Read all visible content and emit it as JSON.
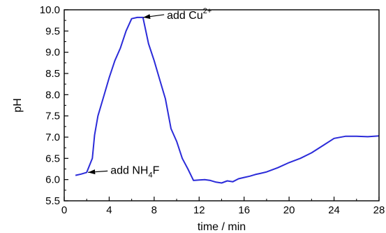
{
  "chart_data": {
    "type": "line",
    "xlabel": "time / min",
    "ylabel": "pH",
    "xlim": [
      0,
      28
    ],
    "ylim": [
      5.5,
      10.0
    ],
    "x_ticks": [
      0,
      4,
      8,
      12,
      16,
      20,
      24,
      28
    ],
    "y_ticks": [
      5.5,
      6.0,
      6.5,
      7.0,
      7.5,
      8.0,
      8.5,
      9.0,
      9.5,
      10.0
    ],
    "x_tick_labels": [
      "0",
      "4",
      "8",
      "12",
      "16",
      "20",
      "24",
      "28"
    ],
    "y_tick_labels": [
      "5.5",
      "6.0",
      "6.5",
      "7.0",
      "7.5",
      "8.0",
      "8.5",
      "9.0",
      "9.5",
      "10.0"
    ],
    "line_color": "#2b2bd9",
    "series": [
      {
        "x": [
          1.0,
          1.5,
          2.0,
          2.5,
          2.7,
          3.0,
          3.5,
          4.0,
          4.5,
          5.0,
          5.5,
          6.0,
          6.5,
          7.0,
          7.5,
          8.0,
          8.5,
          9.0,
          9.5,
          10.0,
          10.5,
          11.0,
          11.5,
          12.0,
          12.5,
          13.0,
          13.5,
          14.0,
          14.5,
          15.0,
          15.5,
          16.0,
          16.5,
          17.0,
          17.5,
          18.0,
          19.0,
          20.0,
          21.0,
          22.0,
          23.0,
          24.0,
          25.0,
          26.0,
          27.0,
          28.0
        ],
        "y": [
          6.1,
          6.13,
          6.17,
          6.5,
          7.05,
          7.5,
          7.95,
          8.4,
          8.8,
          9.1,
          9.5,
          9.79,
          9.82,
          9.82,
          9.2,
          8.8,
          8.35,
          7.9,
          7.2,
          6.9,
          6.5,
          6.25,
          5.98,
          5.99,
          6.0,
          5.98,
          5.94,
          5.92,
          5.97,
          5.95,
          6.02,
          6.05,
          6.08,
          6.12,
          6.15,
          6.18,
          6.28,
          6.4,
          6.5,
          6.63,
          6.8,
          6.97,
          7.02,
          7.02,
          7.01,
          7.03
        ]
      }
    ],
    "annotations": [
      {
        "text": "add Cu",
        "superscript": "2+",
        "x": 6.9,
        "y": 9.82
      },
      {
        "text": "add NH",
        "subscript": "4",
        "suffix": "F",
        "x": 2.0,
        "y": 6.17
      }
    ]
  }
}
